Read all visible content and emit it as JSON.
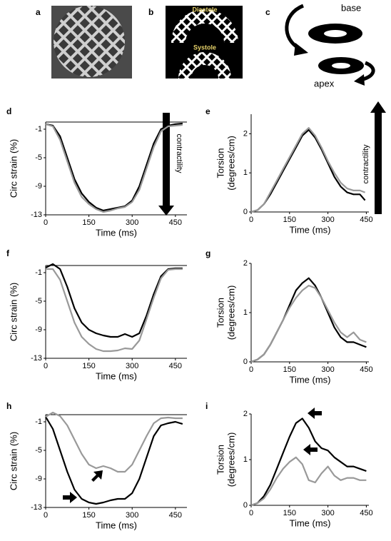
{
  "figure": {
    "panel_labels": [
      "a",
      "b",
      "c"
    ],
    "diastole": "Diastole",
    "systole": "Systole",
    "base": "base",
    "apex": "apex"
  },
  "chart_data": [
    {
      "type": "line",
      "panel": "d",
      "xlabel": "Time (ms)",
      "ylabel": "Circ strain (%)",
      "annotation": "contractility",
      "arrow_direction": "down",
      "xlim": [
        0,
        490
      ],
      "xticks": [
        0,
        150,
        300,
        450
      ],
      "ylim": [
        -13,
        0
      ],
      "yticks": [
        -1,
        -5,
        -9,
        -13
      ],
      "zero_line": true,
      "x": [
        0,
        25,
        50,
        75,
        100,
        125,
        150,
        175,
        200,
        225,
        250,
        275,
        300,
        325,
        350,
        375,
        400,
        425,
        450,
        475
      ],
      "series": [
        {
          "color": "#000000",
          "values": [
            -0.3,
            -0.5,
            -2,
            -5,
            -8,
            -10,
            -11.2,
            -12,
            -12.4,
            -12.2,
            -12,
            -11.8,
            -11,
            -9,
            -6,
            -3,
            -1,
            -0.5,
            -0.3,
            -0.2
          ]
        },
        {
          "color": "#999999",
          "values": [
            -0.3,
            -0.6,
            -2.5,
            -5.5,
            -8.5,
            -10.5,
            -11.5,
            -12.2,
            -12.6,
            -12.4,
            -12.1,
            -11.9,
            -11.2,
            -9.5,
            -6.5,
            -3.5,
            -1.3,
            -0.6,
            -0.5,
            -0.4
          ]
        }
      ]
    },
    {
      "type": "line",
      "panel": "e",
      "xlabel": "Time (ms)",
      "ylabel": [
        "Torsion",
        "(degrees/cm)"
      ],
      "annotation": "contractility",
      "arrow_direction": "up",
      "xlim": [
        0,
        460
      ],
      "xticks": [
        0,
        150,
        300,
        450
      ],
      "ylim": [
        0,
        2.5
      ],
      "yticks": [
        0,
        1,
        2
      ],
      "x": [
        0,
        25,
        50,
        75,
        100,
        125,
        150,
        175,
        200,
        225,
        250,
        275,
        300,
        325,
        350,
        375,
        400,
        425,
        445
      ],
      "series": [
        {
          "color": "#000000",
          "values": [
            0,
            0.05,
            0.2,
            0.45,
            0.75,
            1.05,
            1.35,
            1.65,
            1.95,
            2.1,
            1.9,
            1.6,
            1.25,
            0.9,
            0.65,
            0.5,
            0.45,
            0.45,
            0.3
          ]
        },
        {
          "color": "#999999",
          "values": [
            0,
            0.05,
            0.2,
            0.5,
            0.8,
            1.1,
            1.4,
            1.7,
            2.0,
            2.15,
            1.95,
            1.65,
            1.3,
            1.0,
            0.75,
            0.6,
            0.55,
            0.55,
            0.5
          ]
        }
      ]
    },
    {
      "type": "line",
      "panel": "f",
      "xlabel": "Time (ms)",
      "ylabel": "Circ strain (%)",
      "xlim": [
        0,
        490
      ],
      "xticks": [
        0,
        150,
        300,
        450
      ],
      "ylim": [
        -13,
        0
      ],
      "yticks": [
        -1,
        -5,
        -9,
        -13
      ],
      "zero_line": true,
      "x": [
        0,
        25,
        50,
        75,
        100,
        125,
        150,
        175,
        200,
        225,
        250,
        275,
        300,
        325,
        350,
        375,
        400,
        425,
        450,
        475
      ],
      "series": [
        {
          "color": "#000000",
          "values": [
            -0.3,
            0.2,
            -0.5,
            -3,
            -6,
            -8,
            -9,
            -9.5,
            -9.8,
            -10,
            -10,
            -9.6,
            -10,
            -9.5,
            -7,
            -4,
            -1.5,
            -0.5,
            -0.4,
            -0.4
          ]
        },
        {
          "color": "#999999",
          "values": [
            -0.5,
            -0.5,
            -2,
            -5,
            -8,
            -10,
            -11,
            -11.7,
            -12,
            -12,
            -11.9,
            -11.6,
            -11.7,
            -10.5,
            -7.5,
            -4.5,
            -1.8,
            -0.6,
            -0.5,
            -0.5
          ]
        }
      ]
    },
    {
      "type": "line",
      "panel": "g",
      "xlabel": "Time (ms)",
      "ylabel": [
        "Torsion",
        "(degrees/cm)"
      ],
      "xlim": [
        0,
        460
      ],
      "xticks": [
        0,
        150,
        300,
        450
      ],
      "ylim": [
        0,
        2
      ],
      "yticks": [
        0,
        1,
        2
      ],
      "x": [
        0,
        25,
        50,
        75,
        100,
        125,
        150,
        175,
        200,
        225,
        250,
        275,
        300,
        325,
        350,
        375,
        400,
        425,
        450
      ],
      "series": [
        {
          "color": "#000000",
          "values": [
            0,
            0.05,
            0.15,
            0.35,
            0.6,
            0.85,
            1.15,
            1.45,
            1.6,
            1.7,
            1.55,
            1.3,
            1.0,
            0.7,
            0.5,
            0.4,
            0.4,
            0.35,
            0.3
          ]
        },
        {
          "color": "#999999",
          "values": [
            0,
            0.05,
            0.15,
            0.35,
            0.6,
            0.85,
            1.1,
            1.3,
            1.45,
            1.55,
            1.5,
            1.3,
            1.05,
            0.8,
            0.6,
            0.5,
            0.6,
            0.45,
            0.4
          ]
        }
      ]
    },
    {
      "type": "line",
      "panel": "h",
      "xlabel": "Time (ms)",
      "ylabel": "Circ strain (%)",
      "xlim": [
        0,
        490
      ],
      "xticks": [
        0,
        150,
        300,
        450
      ],
      "ylim": [
        -13,
        0
      ],
      "yticks": [
        -1,
        -5,
        -9,
        -13
      ],
      "zero_line": true,
      "x": [
        0,
        25,
        50,
        75,
        100,
        125,
        150,
        175,
        200,
        225,
        250,
        275,
        300,
        325,
        350,
        375,
        400,
        425,
        450,
        475
      ],
      "series": [
        {
          "color": "#000000",
          "values": [
            -0.3,
            -2,
            -5,
            -8,
            -10.5,
            -11.8,
            -12.3,
            -12.5,
            -12.3,
            -12,
            -11.8,
            -11.8,
            -11,
            -9,
            -6,
            -3,
            -1.5,
            -1.2,
            -1.0,
            -1.3
          ]
        },
        {
          "color": "#999999",
          "values": [
            -0.3,
            0.3,
            -0.2,
            -1.5,
            -3.5,
            -5.5,
            -7,
            -7.5,
            -7.2,
            -7.5,
            -8,
            -8,
            -7,
            -5,
            -3,
            -1.2,
            -0.5,
            -0.4,
            -0.5,
            -0.5
          ]
        }
      ]
    },
    {
      "type": "line",
      "panel": "i",
      "xlabel": "Time (ms)",
      "ylabel": [
        "Torsion",
        "(degrees/cm)"
      ],
      "xlim": [
        0,
        460
      ],
      "xticks": [
        0,
        150,
        300,
        450
      ],
      "ylim": [
        0,
        2
      ],
      "yticks": [
        0,
        1,
        2
      ],
      "x": [
        0,
        25,
        50,
        75,
        100,
        125,
        150,
        175,
        200,
        225,
        250,
        275,
        300,
        325,
        350,
        375,
        400,
        425,
        450
      ],
      "series": [
        {
          "color": "#000000",
          "values": [
            0,
            0.05,
            0.2,
            0.45,
            0.8,
            1.15,
            1.5,
            1.8,
            1.9,
            1.7,
            1.4,
            1.25,
            1.2,
            1.05,
            0.95,
            0.85,
            0.85,
            0.8,
            0.75
          ]
        },
        {
          "color": "#999999",
          "values": [
            0,
            0.05,
            0.15,
            0.35,
            0.6,
            0.8,
            0.95,
            1.05,
            0.9,
            0.55,
            0.5,
            0.7,
            0.85,
            0.65,
            0.55,
            0.6,
            0.6,
            0.55,
            0.55
          ]
        }
      ]
    }
  ]
}
